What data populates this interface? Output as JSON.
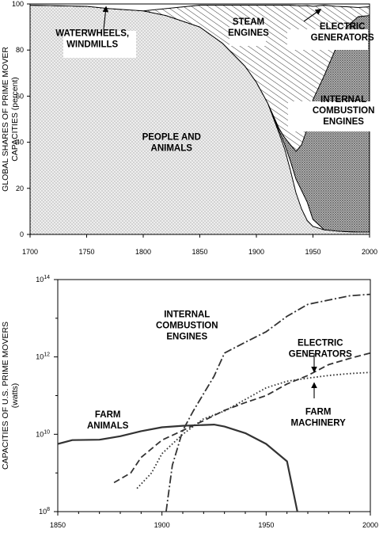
{
  "chart_data": [
    {
      "type": "area",
      "stacking": "percent",
      "ylabel": [
        "GLOBAL SHARES OF PRIME MOVER",
        "CAPACITIES (percent)"
      ],
      "xlim": [
        1700,
        2000
      ],
      "ylim": [
        0,
        100
      ],
      "x_ticks": [
        1700,
        1750,
        1800,
        1850,
        1900,
        1950,
        2000
      ],
      "y_ticks": [
        0,
        20,
        40,
        60,
        80,
        100
      ],
      "x": [
        1700,
        1750,
        1770,
        1800,
        1820,
        1850,
        1870,
        1890,
        1900,
        1910,
        1920,
        1925,
        1930,
        1935,
        1940,
        1945,
        1950,
        1960,
        1970,
        1980,
        1990,
        2000
      ],
      "series": [
        {
          "name": "PEOPLE AND ANIMALS",
          "fill": "dots-light",
          "values": [
            99.5,
            99,
            98,
            97,
            95,
            90,
            83,
            73,
            66,
            57,
            44,
            37,
            28,
            18,
            11,
            6,
            3.5,
            2,
            1.5,
            1.2,
            1,
            1
          ]
        },
        {
          "name": "INTERNAL COMBUSTION ENGINES",
          "fill": "white",
          "values": [
            0,
            0,
            0,
            0,
            0,
            0,
            0,
            0,
            0,
            0,
            1,
            2,
            4,
            6,
            8,
            8,
            3,
            0,
            0,
            0,
            0,
            0
          ]
        },
        {
          "name": "ELECTRIC GENERATORS",
          "fill": "dots-dense",
          "values": [
            0,
            0,
            0,
            0,
            0,
            0,
            0,
            0,
            0,
            0,
            1,
            3,
            7,
            12,
            20,
            32,
            52,
            67,
            79,
            89,
            93.5,
            94
          ]
        },
        {
          "name": "STEAM ENGINES",
          "fill": "hatch",
          "values": [
            0,
            0,
            0,
            0,
            3,
            9.5,
            16.5,
            26.5,
            33.5,
            42.5,
            53.5,
            57.5,
            60.5,
            63.3,
            60.2,
            53.3,
            40.5,
            30.5,
            18.5,
            8.6,
            4,
            3.8
          ]
        },
        {
          "name": "WATERWHEELS, WINDMILLS",
          "fill": "white",
          "values": [
            0.5,
            1,
            2,
            3,
            2,
            0.5,
            0.5,
            0.5,
            0.5,
            0.5,
            0.5,
            0.5,
            0.5,
            0.7,
            0.8,
            0.7,
            1,
            0.5,
            1,
            1.2,
            1.5,
            1.2
          ]
        }
      ],
      "labels": [
        {
          "text": [
            "WATERWHEELS,",
            "WINDMILLS"
          ],
          "x": 1755,
          "y": 85
        },
        {
          "text": [
            "STEAM",
            "ENGINES"
          ],
          "x": 1893,
          "y": 90
        },
        {
          "text": [
            "ELECTRIC",
            "GENERATORS"
          ],
          "x": 1976,
          "y": 88
        },
        {
          "text": [
            "INTERNAL",
            "COMBUSTION",
            "ENGINES"
          ],
          "x": 1977,
          "y": 54
        },
        {
          "text": [
            "PEOPLE AND",
            "ANIMALS"
          ],
          "x": 1825,
          "y": 40
        }
      ],
      "grid": false
    },
    {
      "type": "line",
      "yscale": "log",
      "ylabel": [
        "CAPACITIES OF U.S. PRIME MOVERS",
        "(watts)"
      ],
      "xlim": [
        1850,
        2000
      ],
      "ylim_exp": [
        8,
        14
      ],
      "x_ticks": [
        1850,
        1900,
        1950,
        2000
      ],
      "y_ticks_exp": [
        8,
        10,
        12,
        14
      ],
      "series": [
        {
          "name": "FARM ANIMALS",
          "dash": "solid",
          "x": [
            1850,
            1857,
            1870,
            1880,
            1890,
            1900,
            1910,
            1920,
            1925,
            1930,
            1940,
            1950,
            1960,
            1965
          ],
          "log10": [
            9.75,
            9.85,
            9.86,
            9.95,
            10.08,
            10.18,
            10.22,
            10.24,
            10.25,
            10.2,
            10.03,
            9.75,
            9.3,
            8.0
          ]
        },
        {
          "name": "INTERNAL COMBUSTION ENGINES",
          "dash": "dashdot",
          "x": [
            1902,
            1905,
            1910,
            1915,
            1920,
            1925,
            1930,
            1940,
            1950,
            1960,
            1970,
            1980,
            1990,
            2000
          ],
          "log10": [
            8.0,
            9.2,
            10.1,
            10.6,
            11.05,
            11.5,
            12.1,
            12.38,
            12.65,
            13.05,
            13.36,
            13.47,
            13.58,
            13.62
          ]
        },
        {
          "name": "ELECTRIC GENERATORS",
          "dash": "dashed",
          "x": [
            1877,
            1885,
            1890,
            1900,
            1910,
            1920,
            1930,
            1940,
            1950,
            1960,
            1970,
            1980,
            1990,
            2000
          ],
          "log10": [
            8.75,
            9.0,
            9.4,
            9.85,
            10.1,
            10.35,
            10.62,
            10.82,
            11.0,
            11.3,
            11.52,
            11.8,
            11.96,
            12.1
          ]
        },
        {
          "name": "FARM MACHINERY",
          "dash": "dotted",
          "x": [
            1888,
            1895,
            1900,
            1910,
            1920,
            1930,
            1940,
            1950,
            1960,
            1970,
            1980,
            1990,
            2000
          ],
          "log10": [
            8.6,
            9.0,
            9.5,
            10.0,
            10.4,
            10.6,
            10.9,
            11.2,
            11.37,
            11.45,
            11.52,
            11.57,
            11.6
          ]
        }
      ],
      "labels": [
        {
          "text": [
            "INTERNAL",
            "COMBUSTION",
            "ENGINES"
          ],
          "x": 1912,
          "y_exp": 12.82
        },
        {
          "text": [
            "ELECTRIC",
            "GENERATORS"
          ],
          "x": 1976,
          "y_exp": 12.23
        },
        {
          "text": [
            "FARM",
            "MACHINERY"
          ],
          "x": 1975,
          "y_exp": 10.45
        },
        {
          "text": [
            "FARM",
            "ANIMALS"
          ],
          "x": 1874,
          "y_exp": 10.38
        }
      ],
      "grid": false
    }
  ]
}
